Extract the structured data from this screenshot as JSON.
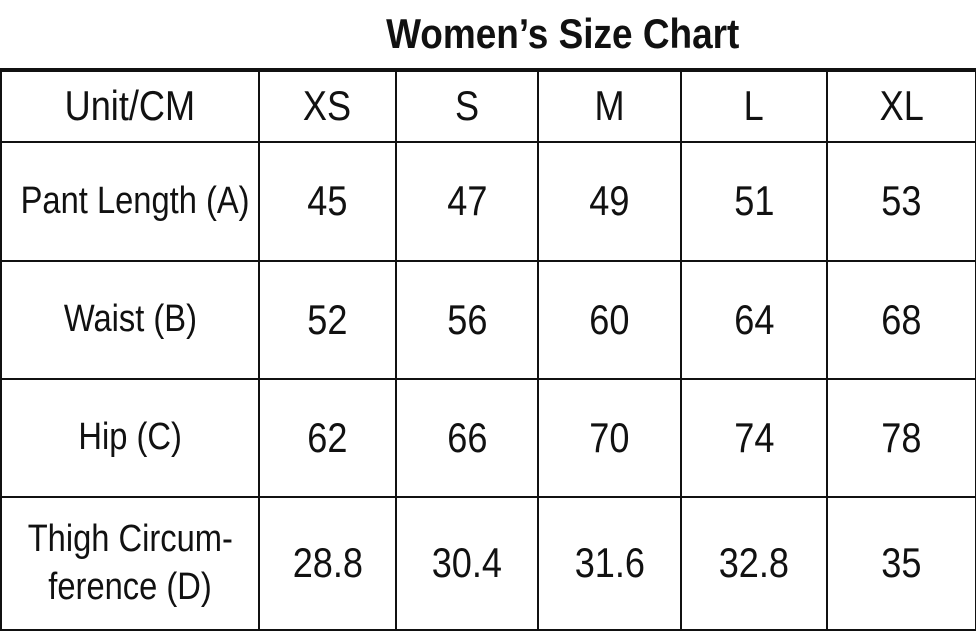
{
  "title": "Women’s Size Chart",
  "table": {
    "header": [
      "Unit/CM",
      "XS",
      "S",
      "M",
      "L",
      "XL"
    ],
    "rows": [
      {
        "label": "Pant Length (A)",
        "values": [
          45,
          47,
          49,
          51,
          53
        ]
      },
      {
        "label": "Waist (B)",
        "values": [
          52,
          56,
          60,
          64,
          68
        ]
      },
      {
        "label": "Hip (C)",
        "values": [
          62,
          66,
          70,
          74,
          78
        ]
      },
      {
        "label": [
          "Thigh Circum-",
          "ference (D)"
        ],
        "values": [
          28.8,
          30.4,
          31.6,
          32.8,
          35
        ]
      }
    ]
  }
}
